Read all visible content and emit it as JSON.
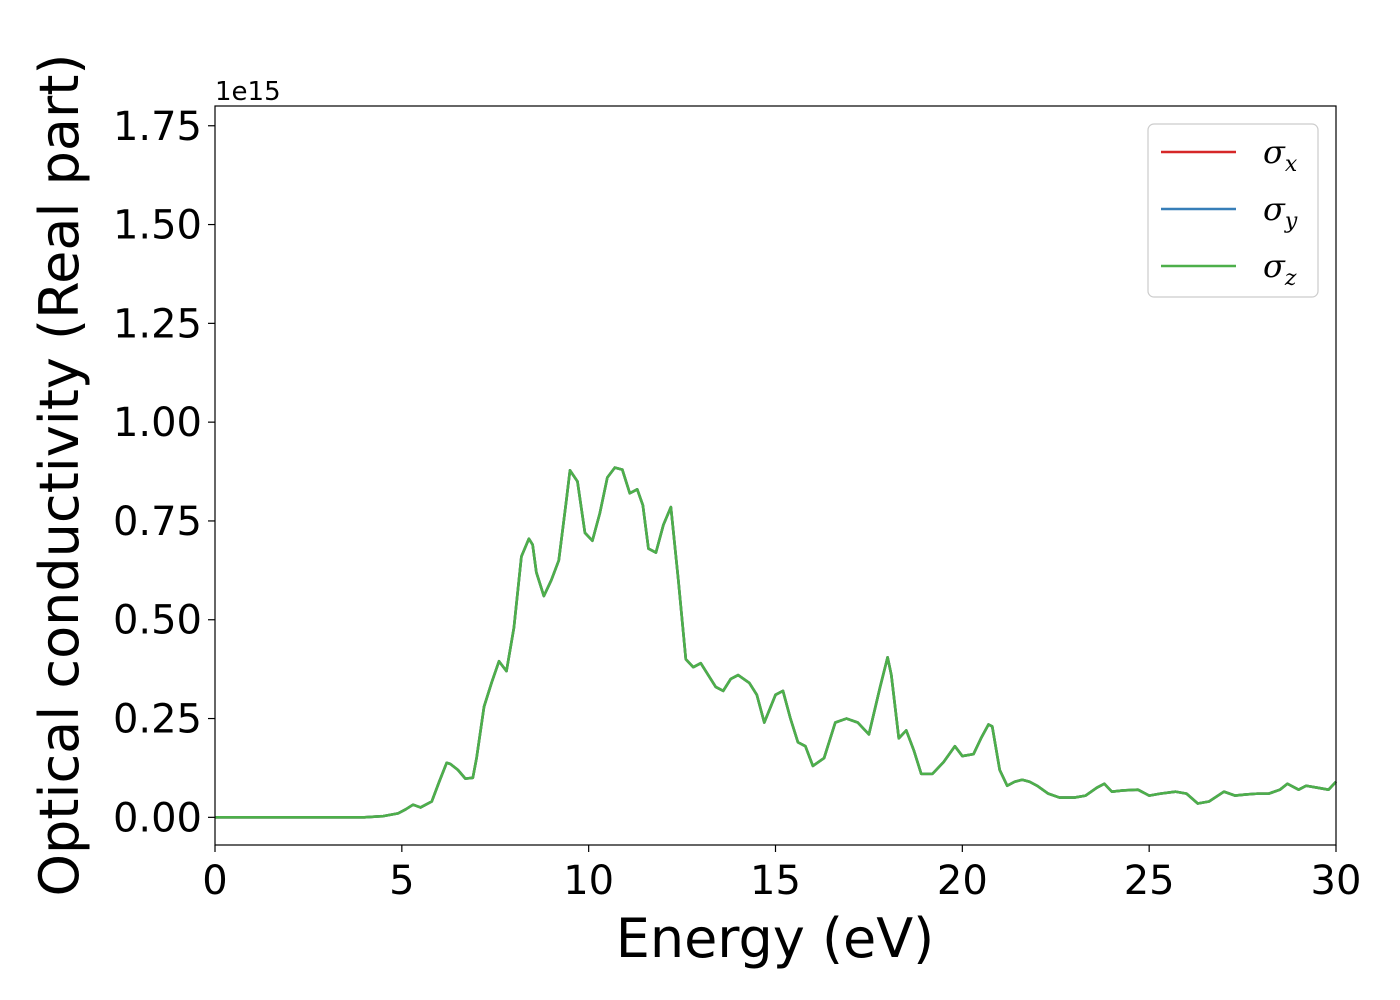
{
  "chart_data": {
    "type": "line",
    "xlabel": "Energy (eV)",
    "ylabel": "Optical conductivity (Real part)",
    "y_offset_text": "1e15",
    "xlim": [
      0,
      30
    ],
    "ylim": [
      -0.07,
      1.8
    ],
    "x_ticks": [
      0,
      5,
      10,
      15,
      20,
      25,
      30
    ],
    "x_tick_labels": [
      "0",
      "5",
      "10",
      "15",
      "20",
      "25",
      "30"
    ],
    "y_ticks": [
      0.0,
      0.25,
      0.5,
      0.75,
      1.0,
      1.25,
      1.5,
      1.75
    ],
    "y_tick_labels": [
      "0.00",
      "0.25",
      "0.50",
      "0.75",
      "1.00",
      "1.25",
      "1.50",
      "1.75"
    ],
    "grid": false,
    "legend_position": "top-right",
    "x": [
      0,
      1,
      2,
      3,
      4,
      4.5,
      4.9,
      5.1,
      5.3,
      5.5,
      5.8,
      6.0,
      6.2,
      6.3,
      6.5,
      6.7,
      6.9,
      7.0,
      7.2,
      7.4,
      7.6,
      7.8,
      8.0,
      8.2,
      8.4,
      8.5,
      8.6,
      8.8,
      9.0,
      9.2,
      9.4,
      9.5,
      9.7,
      9.9,
      10.1,
      10.3,
      10.5,
      10.7,
      10.9,
      11.1,
      11.3,
      11.45,
      11.6,
      11.8,
      12.0,
      12.2,
      12.4,
      12.6,
      12.8,
      13.0,
      13.2,
      13.4,
      13.6,
      13.8,
      14.0,
      14.3,
      14.5,
      14.7,
      15.0,
      15.2,
      15.4,
      15.6,
      15.8,
      16.0,
      16.3,
      16.6,
      16.9,
      17.2,
      17.5,
      17.8,
      18.0,
      18.1,
      18.3,
      18.5,
      18.7,
      18.9,
      19.2,
      19.5,
      19.8,
      20.0,
      20.3,
      20.5,
      20.7,
      20.8,
      21.0,
      21.2,
      21.4,
      21.6,
      21.8,
      22.0,
      22.3,
      22.6,
      23.0,
      23.3,
      23.6,
      23.8,
      24.0,
      24.3,
      24.7,
      25.0,
      25.3,
      25.7,
      26.0,
      26.3,
      26.6,
      27.0,
      27.3,
      27.6,
      27.9,
      28.2,
      28.5,
      28.7,
      29.0,
      29.2,
      29.5,
      29.8,
      30.0
    ],
    "series": [
      {
        "name": "σx",
        "color": "#d62728",
        "values": [
          0,
          0,
          0,
          0,
          0,
          0.003,
          0.01,
          0.02,
          0.032,
          0.025,
          0.04,
          0.09,
          0.138,
          0.135,
          0.12,
          0.098,
          0.1,
          0.15,
          0.28,
          0.34,
          0.395,
          0.37,
          0.48,
          0.66,
          0.705,
          0.69,
          0.62,
          0.56,
          0.6,
          0.65,
          0.8,
          0.878,
          0.85,
          0.72,
          0.7,
          0.77,
          0.86,
          0.885,
          0.88,
          0.82,
          0.83,
          0.79,
          0.68,
          0.67,
          0.74,
          0.785,
          0.6,
          0.4,
          0.38,
          0.39,
          0.36,
          0.33,
          0.32,
          0.35,
          0.36,
          0.34,
          0.31,
          0.24,
          0.31,
          0.32,
          0.25,
          0.19,
          0.18,
          0.13,
          0.15,
          0.24,
          0.25,
          0.24,
          0.21,
          0.33,
          0.405,
          0.36,
          0.2,
          0.22,
          0.17,
          0.11,
          0.11,
          0.14,
          0.18,
          0.155,
          0.16,
          0.2,
          0.235,
          0.23,
          0.12,
          0.08,
          0.09,
          0.095,
          0.09,
          0.08,
          0.06,
          0.05,
          0.05,
          0.055,
          0.075,
          0.085,
          0.065,
          0.068,
          0.07,
          0.055,
          0.06,
          0.065,
          0.06,
          0.035,
          0.04,
          0.065,
          0.055,
          0.058,
          0.06,
          0.06,
          0.07,
          0.085,
          0.07,
          0.08,
          0.075,
          0.07,
          0.09
        ]
      },
      {
        "name": "σy",
        "color": "#377eb8",
        "values": [
          0,
          0,
          0,
          0,
          0,
          0.003,
          0.01,
          0.02,
          0.032,
          0.025,
          0.04,
          0.09,
          0.138,
          0.135,
          0.12,
          0.098,
          0.1,
          0.15,
          0.28,
          0.34,
          0.395,
          0.37,
          0.48,
          0.66,
          0.705,
          0.69,
          0.62,
          0.56,
          0.6,
          0.65,
          0.8,
          0.878,
          0.85,
          0.72,
          0.7,
          0.77,
          0.86,
          0.885,
          0.88,
          0.82,
          0.83,
          0.79,
          0.68,
          0.67,
          0.74,
          0.785,
          0.6,
          0.4,
          0.38,
          0.39,
          0.36,
          0.33,
          0.32,
          0.35,
          0.36,
          0.34,
          0.31,
          0.24,
          0.31,
          0.32,
          0.25,
          0.19,
          0.18,
          0.13,
          0.15,
          0.24,
          0.25,
          0.24,
          0.21,
          0.33,
          0.405,
          0.36,
          0.2,
          0.22,
          0.17,
          0.11,
          0.11,
          0.14,
          0.18,
          0.155,
          0.16,
          0.2,
          0.235,
          0.23,
          0.12,
          0.08,
          0.09,
          0.095,
          0.09,
          0.08,
          0.06,
          0.05,
          0.05,
          0.055,
          0.075,
          0.085,
          0.065,
          0.068,
          0.07,
          0.055,
          0.06,
          0.065,
          0.06,
          0.035,
          0.04,
          0.065,
          0.055,
          0.058,
          0.06,
          0.06,
          0.07,
          0.085,
          0.07,
          0.08,
          0.075,
          0.07,
          0.09
        ]
      },
      {
        "name": "σz",
        "color": "#4daf4a",
        "values": [
          0,
          0,
          0,
          0,
          0,
          0.003,
          0.01,
          0.02,
          0.032,
          0.025,
          0.04,
          0.09,
          0.138,
          0.135,
          0.12,
          0.098,
          0.1,
          0.15,
          0.28,
          0.34,
          0.395,
          0.37,
          0.48,
          0.66,
          0.705,
          0.69,
          0.62,
          0.56,
          0.6,
          0.65,
          0.8,
          0.878,
          0.85,
          0.72,
          0.7,
          0.77,
          0.86,
          0.885,
          0.88,
          0.82,
          0.83,
          0.79,
          0.68,
          0.67,
          0.74,
          0.785,
          0.6,
          0.4,
          0.38,
          0.39,
          0.36,
          0.33,
          0.32,
          0.35,
          0.36,
          0.34,
          0.31,
          0.24,
          0.31,
          0.32,
          0.25,
          0.19,
          0.18,
          0.13,
          0.15,
          0.24,
          0.25,
          0.24,
          0.21,
          0.33,
          0.405,
          0.36,
          0.2,
          0.22,
          0.17,
          0.11,
          0.11,
          0.14,
          0.18,
          0.155,
          0.16,
          0.2,
          0.235,
          0.23,
          0.12,
          0.08,
          0.09,
          0.095,
          0.09,
          0.08,
          0.06,
          0.05,
          0.05,
          0.055,
          0.075,
          0.085,
          0.065,
          0.068,
          0.07,
          0.055,
          0.06,
          0.065,
          0.06,
          0.035,
          0.04,
          0.065,
          0.055,
          0.058,
          0.06,
          0.06,
          0.07,
          0.085,
          0.07,
          0.08,
          0.075,
          0.07,
          0.09
        ]
      }
    ]
  }
}
